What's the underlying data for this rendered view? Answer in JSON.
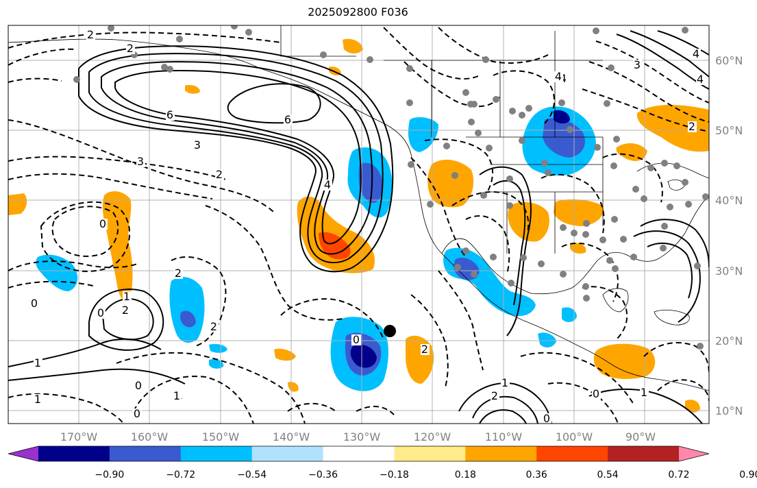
{
  "title": "2025092800 F036",
  "colors": {
    "background": "#ffffff",
    "land_outline": "#000000",
    "grid": "#b0b0b0",
    "contour": "#000000",
    "station": "#808080",
    "marker": "#000000",
    "tick_text": "#808080"
  },
  "lon_ticks": [
    "170°W",
    "160°W",
    "150°W",
    "140°W",
    "130°W",
    "120°W",
    "110°W",
    "100°W",
    "90°W"
  ],
  "lat_ticks": [
    "60°N",
    "50°N",
    "40°N",
    "30°N",
    "20°N",
    "10°N"
  ],
  "colorbar": {
    "levels": [
      "−0.90",
      "−0.72",
      "−0.54",
      "−0.36",
      "−0.18",
      "0.18",
      "0.36",
      "0.54",
      "0.72",
      "0.90"
    ],
    "colors": [
      "#9932cc",
      "#00008b",
      "#3a5bd0",
      "#00bfff",
      "#b0e2ff",
      "#ffffff",
      "#ffeb8a",
      "#ffa500",
      "#ff4500",
      "#b22222",
      "#ff88aa"
    ],
    "extend": "both"
  },
  "contour_labels": [
    "2",
    "2",
    "6",
    "6",
    "4",
    "3",
    "3",
    "2",
    "4",
    "2",
    "1",
    "1",
    "0",
    "0",
    "0",
    "1",
    "2",
    "4",
    "2",
    "3",
    "2",
    "4",
    "0",
    "0",
    "1",
    "1",
    "0",
    "2",
    "1",
    "2",
    "0",
    "0",
    "1",
    "1",
    "0",
    "4",
    "2"
  ]
}
